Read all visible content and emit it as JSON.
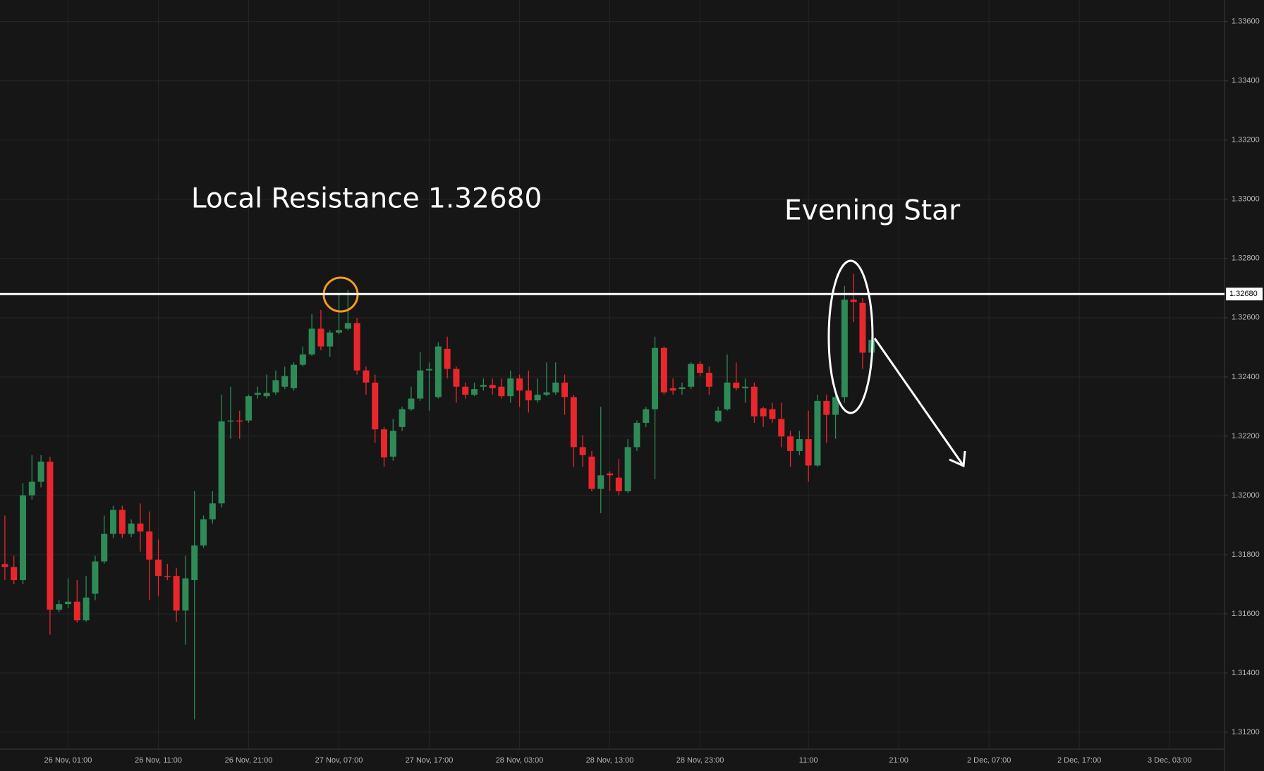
{
  "chart_data": {
    "type": "candlestick",
    "annotations": [
      "Local Resistance 1.32680",
      "Evening Star"
    ],
    "resistance": {
      "value": 1.3268,
      "label": "1.32680"
    },
    "up_color": "#2e8b57",
    "down_color": "#e8272d",
    "grid": true,
    "xlim": [
      -0.54,
      135.08
    ],
    "ylim": [
      1.31143,
      1.33673
    ],
    "yticks": [
      {
        "value": 1.312,
        "label": "1.31200"
      },
      {
        "value": 1.314,
        "label": "1.31400"
      },
      {
        "value": 1.316,
        "label": "1.31600"
      },
      {
        "value": 1.318,
        "label": "1.31800"
      },
      {
        "value": 1.32,
        "label": "1.32000"
      },
      {
        "value": 1.322,
        "label": "1.32200"
      },
      {
        "value": 1.324,
        "label": "1.32400"
      },
      {
        "value": 1.326,
        "label": "1.32600"
      },
      {
        "value": 1.328,
        "label": "1.32800"
      },
      {
        "value": 1.33,
        "label": "1.33000"
      },
      {
        "value": 1.332,
        "label": "1.33200"
      },
      {
        "value": 1.334,
        "label": "1.33400"
      },
      {
        "value": 1.336,
        "label": "1.33600"
      }
    ],
    "xticks": [
      {
        "value": 7,
        "label": "26 Nov, 01:00"
      },
      {
        "value": 17,
        "label": "26 Nov, 11:00"
      },
      {
        "value": 27,
        "label": "26 Nov, 21:00"
      },
      {
        "value": 37,
        "label": "27 Nov, 07:00"
      },
      {
        "value": 47,
        "label": "27 Nov, 17:00"
      },
      {
        "value": 57,
        "label": "28 Nov, 03:00"
      },
      {
        "value": 67,
        "label": "28 Nov, 13:00"
      },
      {
        "value": 77,
        "label": "28 Nov, 23:00"
      },
      {
        "value": 89,
        "label": "11:00"
      },
      {
        "value": 99,
        "label": "21:00"
      },
      {
        "value": 109,
        "label": "2 Dec, 07:00"
      },
      {
        "value": 119,
        "label": "2 Dec, 17:00"
      },
      {
        "value": 129,
        "label": "3 Dec, 03:00"
      }
    ],
    "x": [
      0,
      1,
      2,
      3,
      4,
      5,
      6,
      7,
      8,
      9,
      10,
      11,
      12,
      13,
      14,
      15,
      16,
      17,
      18,
      19,
      20,
      21,
      22,
      23,
      24,
      25,
      26,
      27,
      28,
      29,
      30,
      31,
      32,
      33,
      34,
      35,
      36,
      37,
      38,
      39,
      40,
      41,
      42,
      43,
      44,
      45,
      46,
      47,
      48,
      49,
      50,
      51,
      52,
      53,
      54,
      55,
      56,
      57,
      58,
      59,
      60,
      61,
      62,
      63,
      64,
      65,
      66,
      67,
      68,
      69,
      70,
      71,
      72,
      73,
      74,
      75,
      76,
      77,
      78,
      79,
      80,
      81,
      82,
      83,
      84,
      85,
      86,
      87,
      88,
      89,
      90,
      91,
      92,
      93,
      94,
      95,
      96
    ],
    "open": [
      1.31768,
      1.31758,
      1.31714,
      1.32,
      1.32046,
      1.32114,
      1.31614,
      1.31633,
      1.31641,
      1.31578,
      1.31668,
      1.31777,
      1.3187,
      1.31951,
      1.3187,
      1.31905,
      1.31878,
      1.31783,
      1.31728,
      1.31728,
      1.31611,
      1.31714,
      1.31831,
      1.31919,
      1.31973,
      1.3225,
      1.32253,
      1.32253,
      1.3234,
      1.32335,
      1.32348,
      1.32367,
      1.32362,
      1.32441,
      1.32476,
      1.32563,
      1.32503,
      1.3255,
      1.32563,
      1.32582,
      1.32422,
      1.32381,
      1.32223,
      1.32131,
      1.32231,
      1.32291,
      1.32327,
      1.32422,
      1.32332,
      1.32495,
      1.32427,
      1.32367,
      1.3234,
      1.32367,
      1.32373,
      1.32367,
      1.32335,
      1.32395,
      1.32354,
      1.32321,
      1.3234,
      1.32348,
      1.32381,
      1.32332,
      1.32163,
      1.32131,
      1.32022,
      1.32074,
      1.3206,
      1.32014,
      1.32163,
      1.32245,
      1.32291,
      1.32498,
      1.32362,
      1.32359,
      1.32367,
      1.32444,
      1.32414,
      1.3225,
      1.32291,
      1.32381,
      1.32362,
      1.32367,
      1.32294,
      1.32291,
      1.32258,
      1.32199,
      1.3215,
      1.3219,
      1.32101,
      1.32319,
      1.32272,
      1.32332,
      1.32661,
      1.3265,
      1.32482
    ],
    "high": [
      1.31932,
      1.31796,
      1.32041,
      1.32136,
      1.32136,
      1.32131,
      1.31646,
      1.3172,
      1.31714,
      1.31728,
      1.31796,
      1.31932,
      1.31965,
      1.31965,
      1.31919,
      1.31973,
      1.31946,
      1.31851,
      1.31769,
      1.31755,
      1.31796,
      1.32014,
      1.31932,
      1.32014,
      1.3234,
      1.32367,
      1.32286,
      1.3234,
      1.32367,
      1.32408,
      1.32422,
      1.32435,
      1.32449,
      1.32503,
      1.32612,
      1.32626,
      1.32558,
      1.3268,
      1.32694,
      1.32599,
      1.32435,
      1.32408,
      1.32231,
      1.32258,
      1.32299,
      1.32367,
      1.32484,
      1.32449,
      1.32517,
      1.32536,
      1.32435,
      1.32381,
      1.32381,
      1.32395,
      1.32395,
      1.32395,
      1.32422,
      1.32408,
      1.32422,
      1.32395,
      1.32449,
      1.32449,
      1.32408,
      1.3234,
      1.32204,
      1.3215,
      1.32299,
      1.32082,
      1.32123,
      1.3219,
      1.32253,
      1.32299,
      1.32536,
      1.32503,
      1.32395,
      1.32381,
      1.32449,
      1.32454,
      1.32435,
      1.32299,
      1.32476,
      1.32449,
      1.32395,
      1.32381,
      1.32299,
      1.32313,
      1.32313,
      1.32218,
      1.32218,
      1.32286,
      1.3234,
      1.3234,
      1.3234,
      1.32707,
      1.32748,
      1.32666,
      1.32536
    ],
    "low": [
      1.31714,
      1.317,
      1.317,
      1.31986,
      1.32027,
      1.3153,
      1.31606,
      1.31619,
      1.3157,
      1.31573,
      1.31646,
      1.31769,
      1.31856,
      1.31856,
      1.31859,
      1.3181,
      1.31646,
      1.3166,
      1.31714,
      1.31573,
      1.31496,
      1.31244,
      1.31823,
      1.31905,
      1.31959,
      1.32191,
      1.32191,
      1.32245,
      1.32327,
      1.32327,
      1.3234,
      1.32359,
      1.32354,
      1.32435,
      1.32471,
      1.3249,
      1.32468,
      1.32544,
      1.32558,
      1.32408,
      1.3234,
      1.32177,
      1.32096,
      1.32117,
      1.32218,
      1.32286,
      1.32319,
      1.32286,
      1.32327,
      1.32395,
      1.32313,
      1.32327,
      1.32335,
      1.32354,
      1.3234,
      1.32327,
      1.32313,
      1.32299,
      1.3228,
      1.32313,
      1.32335,
      1.3234,
      1.32272,
      1.32096,
      1.32096,
      1.32014,
      1.3194,
      1.32014,
      1.32,
      1.32008,
      1.3215,
      1.32231,
      1.32055,
      1.3234,
      1.3234,
      1.3234,
      1.32359,
      1.32403,
      1.3234,
      1.32245,
      1.32286,
      1.32354,
      1.32313,
      1.32245,
      1.32231,
      1.32245,
      1.32163,
      1.32096,
      1.32136,
      1.32046,
      1.32096,
      1.32177,
      1.32191,
      1.32313,
      1.32585,
      1.32427,
      1.32476
    ],
    "close": [
      1.31758,
      1.31714,
      1.32,
      1.32046,
      1.32114,
      1.31614,
      1.31633,
      1.31641,
      1.31578,
      1.31655,
      1.31777,
      1.3187,
      1.31951,
      1.3187,
      1.31905,
      1.31878,
      1.31783,
      1.31728,
      1.31725,
      1.31611,
      1.3172,
      1.31831,
      1.31919,
      1.31973,
      1.3225,
      1.32253,
      1.3225,
      1.32335,
      1.32346,
      1.32346,
      1.32389,
      1.32403,
      1.32441,
      1.32476,
      1.32563,
      1.32503,
      1.3255,
      1.32558,
      1.32582,
      1.32422,
      1.32381,
      1.32223,
      1.32128,
      1.32218,
      1.32291,
      1.32327,
      1.32422,
      1.32427,
      1.32503,
      1.32427,
      1.32367,
      1.3234,
      1.32359,
      1.32373,
      1.32362,
      1.32335,
      1.32395,
      1.32354,
      1.32321,
      1.3234,
      1.32348,
      1.32381,
      1.32332,
      1.32163,
      1.32136,
      1.32022,
      1.32068,
      1.32068,
      1.32014,
      1.32163,
      1.32245,
      1.32291,
      1.32498,
      1.32348,
      1.32354,
      1.32365,
      1.32444,
      1.32414,
      1.32367,
      1.32286,
      1.32381,
      1.32362,
      1.32367,
      1.32267,
      1.32267,
      1.32258,
      1.32199,
      1.3215,
      1.3219,
      1.32101,
      1.32319,
      1.32272,
      1.32332,
      1.32661,
      1.32653,
      1.32482,
      1.32525
    ]
  }
}
